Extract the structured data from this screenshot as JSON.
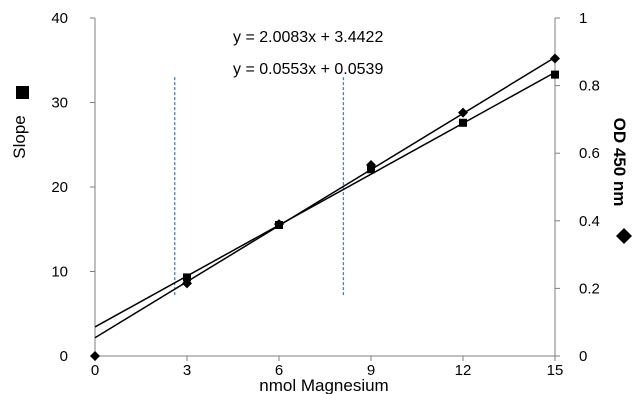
{
  "chart_data": {
    "type": "scatter",
    "xlabel": "nmol Magnesium",
    "ylabel_left": "Slope",
    "ylabel_right": "OD 450 nm",
    "x_ticks": [
      0,
      3,
      6,
      9,
      12,
      15
    ],
    "x_tick_labels": [
      "0",
      "3",
      "6",
      "9",
      "12",
      "15"
    ],
    "xlim": [
      0,
      15
    ],
    "y_left_ticks": [
      0,
      10,
      20,
      30,
      40
    ],
    "y_left_tick_labels": [
      "0",
      "10",
      "20",
      "30",
      "40"
    ],
    "ylim_left": [
      0,
      40
    ],
    "y_right_ticks": [
      0,
      0.2,
      0.4,
      0.6,
      0.8,
      1
    ],
    "y_right_tick_labels": [
      "0",
      "0.2",
      "0.4",
      "0.6",
      "0.8",
      "1"
    ],
    "ylim_right": [
      0,
      1
    ],
    "grid": false,
    "series": [
      {
        "marker": "square",
        "axis": "left",
        "color": "#000000",
        "x": [
          3,
          6,
          9,
          12,
          15
        ],
        "y": [
          9.3,
          15.5,
          22.1,
          27.6,
          33.3
        ]
      },
      {
        "marker": "diamond",
        "axis": "right",
        "color": "#000000",
        "x": [
          0,
          3,
          6,
          9,
          12,
          15
        ],
        "y": [
          0,
          0.215,
          0.39,
          0.565,
          0.72,
          0.88
        ]
      }
    ],
    "trendlines": [
      {
        "axis": "left",
        "slope": 2.0083,
        "intercept": 3.4422,
        "x_range": [
          0,
          15
        ],
        "color": "#000000"
      },
      {
        "axis": "right",
        "slope": 0.0553,
        "intercept": 0.0539,
        "x_range": [
          0,
          15
        ],
        "color": "#000000"
      }
    ],
    "annotations": [
      "y = 2.0083x + 3.4422",
      "y = 0.0553x + 0.0539"
    ],
    "reference_lines": [
      {
        "x": 2.6,
        "y_left_range": [
          7,
          33
        ],
        "style": "dashed",
        "color": "#4a7fb5"
      },
      {
        "x": 8.1,
        "y_left_range": [
          7,
          33
        ],
        "style": "dashed",
        "color": "#4a7fb5"
      }
    ]
  }
}
